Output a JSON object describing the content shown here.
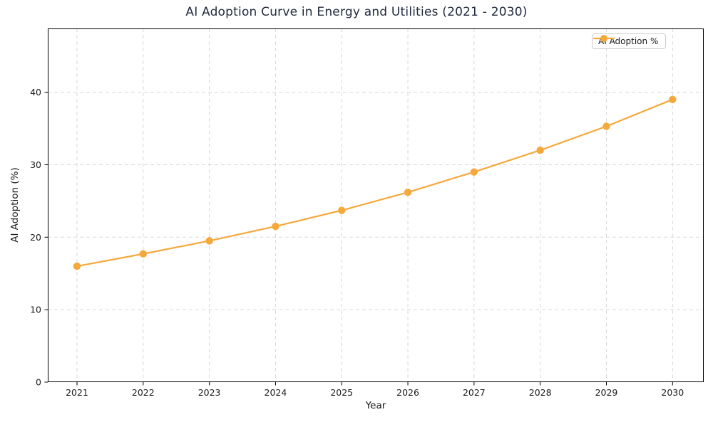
{
  "chart_data": {
    "type": "line",
    "title": "AI Adoption Curve in Energy and Utilities (2021 - 2030)",
    "xlabel": "Year",
    "ylabel": "AI Adoption (%)",
    "x": [
      "2021",
      "2022",
      "2023",
      "2024",
      "2025",
      "2026",
      "2027",
      "2028",
      "2029",
      "2030"
    ],
    "series": [
      {
        "name": "AI Adoption %",
        "values": [
          16.0,
          17.7,
          19.5,
          21.5,
          23.7,
          26.2,
          29.0,
          32.0,
          35.3,
          39.0
        ]
      }
    ],
    "ylim": [
      0,
      48.8
    ],
    "yticks": [
      0,
      10,
      20,
      30,
      40
    ],
    "grid": "dashed-both-axes",
    "legend_position": "upper-right",
    "marker": "circle",
    "colors": {
      "line": "#F5A83C",
      "title": "#222B3D",
      "grid": "#D7D7D7",
      "spine": "#000000",
      "tick_label": "#1A1A1A",
      "legend_border": "#CCCCCC",
      "background": "#FFFFFF"
    }
  }
}
